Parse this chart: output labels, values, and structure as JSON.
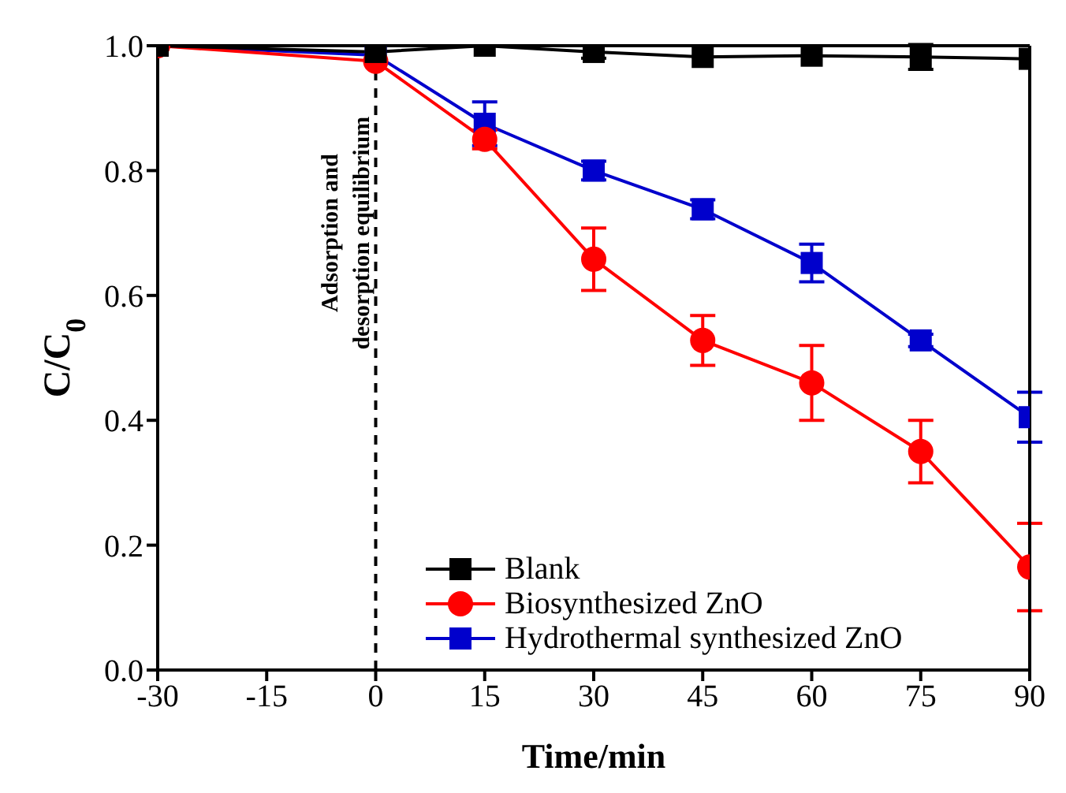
{
  "chart_data": {
    "type": "line",
    "xlabel": "Time/min",
    "ylabel": "C/C$_{0}$",
    "x": [
      -30,
      0,
      15,
      30,
      45,
      60,
      75,
      90
    ],
    "series": [
      {
        "name": "Blank",
        "color": "#000000",
        "marker": "square",
        "values": [
          1.0,
          0.99,
          1.0,
          0.99,
          0.982,
          0.984,
          0.982,
          0.979
        ],
        "errors": [
          null,
          null,
          null,
          0.01,
          null,
          null,
          0.02,
          null
        ]
      },
      {
        "name": "Biosynthesized ZnO",
        "color": "#ff0000",
        "marker": "circle",
        "values": [
          1.0,
          0.975,
          0.85,
          0.658,
          0.528,
          0.46,
          0.35,
          0.165
        ],
        "errors": [
          null,
          null,
          0.015,
          0.05,
          0.04,
          0.06,
          0.05,
          0.07
        ]
      },
      {
        "name": "Hydrothermal synthesized ZnO",
        "color": "#0000cc",
        "marker": "square",
        "values": [
          1.0,
          0.985,
          0.875,
          0.8,
          0.738,
          0.652,
          0.528,
          0.405
        ],
        "errors": [
          null,
          null,
          0.035,
          0.015,
          0.015,
          0.03,
          0.01,
          0.04
        ]
      }
    ],
    "xlim": [
      -30,
      90
    ],
    "xticks": [
      -30,
      -15,
      0,
      15,
      30,
      45,
      60,
      75,
      90
    ],
    "ylim": [
      0,
      1.0
    ],
    "yticks": [
      {
        "value": 0,
        "label": "0.0"
      },
      {
        "value": 0.2,
        "label": "0.2"
      },
      {
        "value": 0.4,
        "label": "0.4"
      },
      {
        "value": 0.6,
        "label": "0.6"
      },
      {
        "value": 0.8,
        "label": "0.8"
      },
      {
        "value": 1.0,
        "label": "1.0"
      }
    ],
    "ref_lines": [
      {
        "axis": "x",
        "value": 0,
        "label": "Adsorption and\ndesorption equilibrium",
        "color": "#000000",
        "line_style": "dashed"
      }
    ],
    "grid": false,
    "legend": "bottom right",
    "line_style": "solid"
  }
}
